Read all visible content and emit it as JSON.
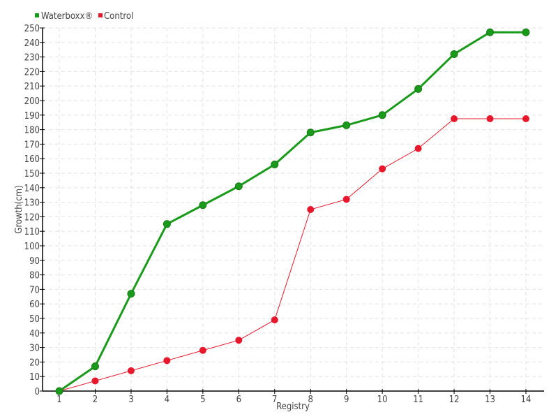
{
  "chart_data": {
    "type": "line",
    "title": "",
    "xlabel": "Registry",
    "ylabel": "Growth(cm)",
    "x": [
      1,
      2,
      3,
      4,
      5,
      6,
      7,
      8,
      9,
      10,
      11,
      12,
      13,
      14
    ],
    "ylim": [
      0,
      250
    ],
    "ytick_step": 10,
    "grid": true,
    "legend_position": "top-left",
    "series": [
      {
        "name": "Waterboxx®",
        "color": "#1a9a1a",
        "values": [
          0,
          17,
          67,
          115,
          128,
          141,
          156,
          178,
          183,
          190,
          208,
          232,
          247,
          247
        ]
      },
      {
        "name": "Control",
        "color": "#e8182c",
        "values": [
          0,
          7,
          14,
          21,
          28,
          35,
          49,
          125,
          132,
          153,
          167,
          187.5,
          187.5,
          187.5
        ]
      }
    ]
  }
}
